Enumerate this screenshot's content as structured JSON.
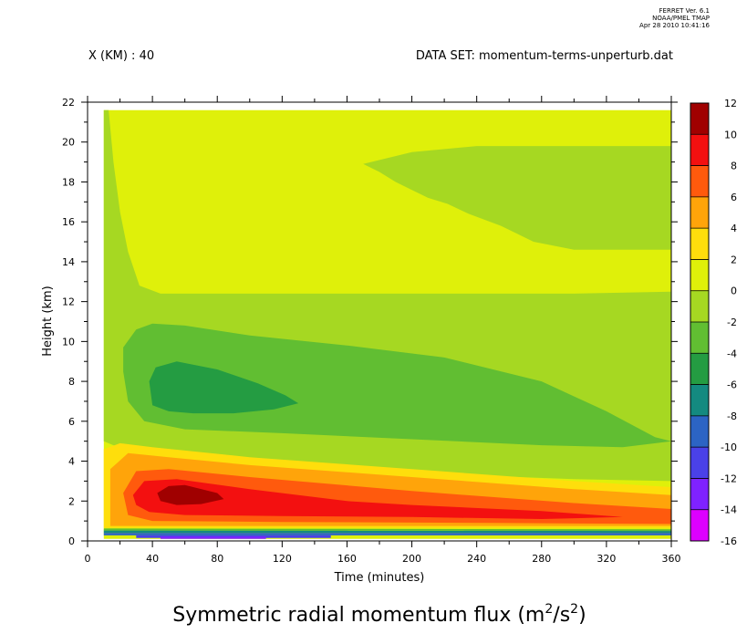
{
  "header": {
    "ferret_lines": [
      "FERRET Ver. 6.1",
      "NOAA/PMEL TMAP",
      "Apr 28 2010 10:41:16"
    ],
    "x_label": "X (KM) : 40",
    "dataset": "DATA SET: momentum-terms-unperturb.dat"
  },
  "chart_data": {
    "type": "heatmap",
    "title": "Symmetric radial momentum flux (m²/s²)",
    "title_main": "Symmetric radial momentum flux (m",
    "title_sup1": "2",
    "title_mid": "/s",
    "title_sup2": "2",
    "title_end": ")",
    "xlabel": "Time (minutes)",
    "ylabel": "Height (km)",
    "xlim": [
      0,
      360
    ],
    "ylim": [
      0,
      22
    ],
    "x_ticks": [
      0,
      40,
      80,
      120,
      160,
      200,
      240,
      280,
      320,
      360
    ],
    "y_ticks": [
      0,
      2,
      4,
      6,
      8,
      10,
      12,
      14,
      16,
      18,
      20,
      22
    ],
    "data_extent": {
      "x": [
        10,
        360
      ],
      "y": [
        0.1,
        21.6
      ]
    },
    "colorbar": {
      "levels": [
        -16,
        -14,
        -12,
        -10,
        -8,
        -6,
        -4,
        -2,
        0,
        2,
        4,
        6,
        8,
        10,
        12
      ],
      "colors": [
        "#dd00ff",
        "#7f22ff",
        "#4a41e8",
        "#2c64c4",
        "#148a80",
        "#249c42",
        "#61be32",
        "#a6d822",
        "#dff00a",
        "#fede0c",
        "#ffa40a",
        "#ff5a0d",
        "#f31010",
        "#a00000"
      ]
    },
    "regions": [
      {
        "level_range": [
          0,
          2
        ],
        "color": "#dff00a",
        "polygon": [
          [
            10,
            21.6
          ],
          [
            360,
            21.6
          ],
          [
            360,
            0.1
          ],
          [
            10,
            0.1
          ]
        ]
      },
      {
        "level_range": [
          -2,
          0
        ],
        "color": "#a6d822",
        "polygon": [
          [
            10,
            21.6
          ],
          [
            13,
            21.6
          ],
          [
            16,
            19
          ],
          [
            20,
            16.5
          ],
          [
            25,
            14.5
          ],
          [
            32,
            12.8
          ],
          [
            45,
            12.4
          ],
          [
            100,
            12.4
          ],
          [
            200,
            12.4
          ],
          [
            300,
            12.4
          ],
          [
            360,
            12.5
          ],
          [
            360,
            3
          ],
          [
            300,
            3.1
          ],
          [
            200,
            3.4
          ],
          [
            100,
            3.8
          ],
          [
            40,
            4.3
          ],
          [
            16,
            4.8
          ],
          [
            10,
            5
          ]
        ]
      },
      {
        "level_range": [
          -2,
          0
        ],
        "color": "#a6d822",
        "polygon": [
          [
            170,
            18.9
          ],
          [
            200,
            19.5
          ],
          [
            240,
            19.8
          ],
          [
            280,
            19.8
          ],
          [
            360,
            19.8
          ],
          [
            360,
            14.6
          ],
          [
            300,
            14.6
          ],
          [
            275,
            15
          ],
          [
            255,
            15.8
          ],
          [
            235,
            16.4
          ],
          [
            222,
            16.9
          ],
          [
            210,
            17.2
          ],
          [
            200,
            17.6
          ],
          [
            190,
            18
          ],
          [
            180,
            18.5
          ]
        ]
      },
      {
        "level_range": [
          -4,
          -2
        ],
        "color": "#61be32",
        "polygon": [
          [
            22,
            9.7
          ],
          [
            30,
            10.6
          ],
          [
            40,
            10.9
          ],
          [
            60,
            10.8
          ],
          [
            100,
            10.3
          ],
          [
            160,
            9.8
          ],
          [
            220,
            9.2
          ],
          [
            280,
            8
          ],
          [
            320,
            6.5
          ],
          [
            350,
            5.2
          ],
          [
            360,
            5
          ],
          [
            330,
            4.7
          ],
          [
            280,
            4.8
          ],
          [
            200,
            5.1
          ],
          [
            120,
            5.4
          ],
          [
            60,
            5.6
          ],
          [
            35,
            6
          ],
          [
            25,
            7
          ],
          [
            22,
            8.5
          ]
        ]
      },
      {
        "level_range": [
          -6,
          -4
        ],
        "color": "#249c42",
        "polygon": [
          [
            38,
            8
          ],
          [
            42,
            8.7
          ],
          [
            55,
            9
          ],
          [
            80,
            8.6
          ],
          [
            105,
            7.9
          ],
          [
            122,
            7.3
          ],
          [
            130,
            6.9
          ],
          [
            115,
            6.6
          ],
          [
            90,
            6.4
          ],
          [
            65,
            6.4
          ],
          [
            50,
            6.5
          ],
          [
            40,
            6.8
          ]
        ]
      },
      {
        "level_range": [
          2,
          4
        ],
        "color": "#fede0c",
        "polygon": [
          [
            10,
            4.6
          ],
          [
            20,
            4.9
          ],
          [
            40,
            4.7
          ],
          [
            100,
            4.2
          ],
          [
            200,
            3.6
          ],
          [
            300,
            3
          ],
          [
            360,
            2.7
          ],
          [
            360,
            0.65
          ],
          [
            10,
            0.65
          ]
        ]
      },
      {
        "level_range": [
          4,
          6
        ],
        "color": "#ffa40a",
        "polygon": [
          [
            14,
            3.6
          ],
          [
            25,
            4.4
          ],
          [
            50,
            4.2
          ],
          [
            100,
            3.8
          ],
          [
            200,
            3.2
          ],
          [
            300,
            2.6
          ],
          [
            360,
            2.3
          ],
          [
            360,
            0.75
          ],
          [
            14,
            0.75
          ]
        ]
      },
      {
        "level_range": [
          6,
          8
        ],
        "color": "#ff5a0d",
        "polygon": [
          [
            22,
            2.4
          ],
          [
            30,
            3.5
          ],
          [
            50,
            3.6
          ],
          [
            100,
            3.2
          ],
          [
            200,
            2.5
          ],
          [
            300,
            1.9
          ],
          [
            360,
            1.6
          ],
          [
            360,
            0.85
          ],
          [
            250,
            0.9
          ],
          [
            120,
            0.95
          ],
          [
            40,
            1
          ],
          [
            25,
            1.3
          ]
        ]
      },
      {
        "level_range": [
          8,
          10
        ],
        "color": "#f31010",
        "polygon": [
          [
            28,
            2.3
          ],
          [
            35,
            3
          ],
          [
            55,
            3.1
          ],
          [
            100,
            2.6
          ],
          [
            160,
            2
          ],
          [
            200,
            1.8
          ],
          [
            280,
            1.5
          ],
          [
            330,
            1.2
          ],
          [
            280,
            1.1
          ],
          [
            200,
            1.2
          ],
          [
            120,
            1.25
          ],
          [
            60,
            1.3
          ],
          [
            38,
            1.45
          ],
          [
            30,
            1.8
          ]
        ]
      },
      {
        "level_range": [
          10,
          12
        ],
        "color": "#a00000",
        "polygon": [
          [
            43,
            2.4
          ],
          [
            50,
            2.75
          ],
          [
            60,
            2.8
          ],
          [
            80,
            2.4
          ],
          [
            84,
            2.1
          ],
          [
            70,
            1.85
          ],
          [
            55,
            1.8
          ],
          [
            45,
            2
          ]
        ]
      },
      {
        "level_range": [
          -4,
          -2
        ],
        "color": "#61be32",
        "polygon": [
          [
            10,
            0.62
          ],
          [
            360,
            0.58
          ],
          [
            360,
            0.5
          ],
          [
            10,
            0.52
          ]
        ]
      },
      {
        "level_range": [
          -8,
          -6
        ],
        "color": "#148a80",
        "polygon": [
          [
            10,
            0.52
          ],
          [
            360,
            0.5
          ],
          [
            360,
            0.4
          ],
          [
            10,
            0.4
          ]
        ]
      },
      {
        "level_range": [
          -10,
          -8
        ],
        "color": "#2c64c4",
        "polygon": [
          [
            10,
            0.4
          ],
          [
            360,
            0.4
          ],
          [
            360,
            0.28
          ],
          [
            10,
            0.28
          ]
        ]
      },
      {
        "level_range": [
          -12,
          -10
        ],
        "color": "#4a41e8",
        "polygon": [
          [
            30,
            0.28
          ],
          [
            150,
            0.28
          ],
          [
            150,
            0.15
          ],
          [
            30,
            0.15
          ]
        ]
      },
      {
        "level_range": [
          -14,
          -12
        ],
        "color": "#7f22ff",
        "polygon": [
          [
            45,
            0.22
          ],
          [
            110,
            0.22
          ],
          [
            110,
            0.1
          ],
          [
            45,
            0.1
          ]
        ]
      }
    ]
  }
}
